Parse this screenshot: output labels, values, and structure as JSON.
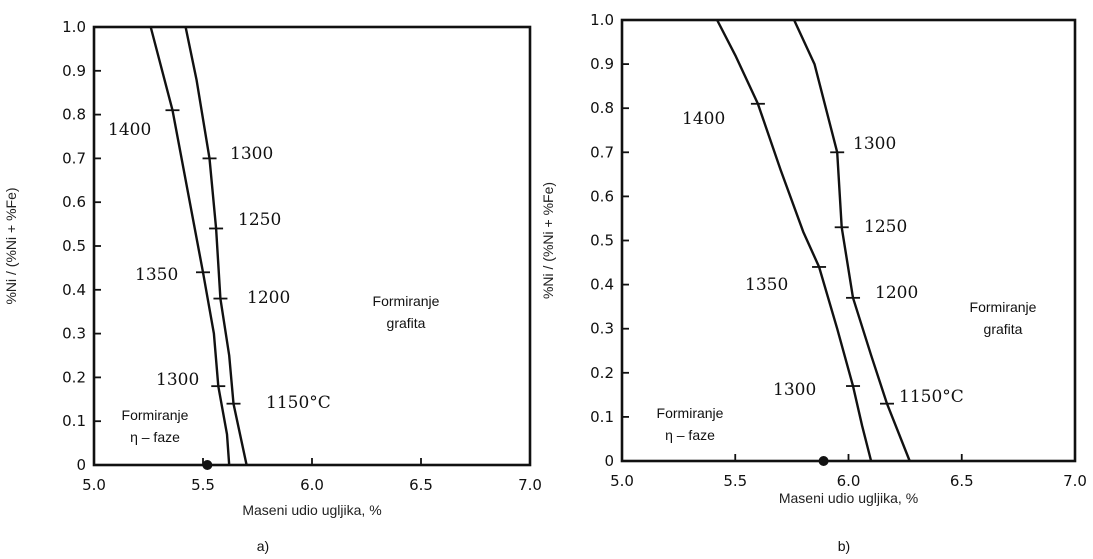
{
  "chart_data": [
    {
      "type": "line",
      "panel_label": "a)",
      "xlabel": "Maseni udio ugljika, %",
      "ylabel": "%Ni / (%Ni + %Fe)",
      "xlim": [
        5.0,
        7.0
      ],
      "ylim": [
        0,
        1.0
      ],
      "x_ticks": [
        "5.0",
        "5.5",
        "6.0",
        "6.5",
        "7.0"
      ],
      "y_ticks": [
        "0",
        "0.1",
        "0.2",
        "0.3",
        "0.4",
        "0.5",
        "0.6",
        "0.7",
        "0.8",
        "0.9",
        "1.0"
      ],
      "grid": false,
      "series": [
        {
          "points": [
            [
              5.26,
              1.0
            ],
            [
              5.36,
              0.81
            ],
            [
              5.5,
              0.44
            ],
            [
              5.55,
              0.3
            ],
            [
              5.57,
              0.18
            ],
            [
              5.61,
              0.07
            ],
            [
              5.62,
              0.0
            ]
          ]
        },
        {
          "points": [
            [
              5.42,
              1.0
            ],
            [
              5.47,
              0.88
            ],
            [
              5.53,
              0.7
            ],
            [
              5.56,
              0.54
            ],
            [
              5.58,
              0.38
            ],
            [
              5.62,
              0.25
            ],
            [
              5.64,
              0.14
            ],
            [
              5.7,
              0.0
            ]
          ]
        }
      ],
      "markers": [
        {
          "label": "1400",
          "x": 5.36,
          "y": 0.81
        },
        {
          "label": "1350",
          "x": 5.5,
          "y": 0.44
        },
        {
          "label": "1300",
          "x": 5.57,
          "y": 0.18
        },
        {
          "label": "1300",
          "x": 5.53,
          "y": 0.7
        },
        {
          "label": "1250",
          "x": 5.56,
          "y": 0.54
        },
        {
          "label": "1200",
          "x": 5.58,
          "y": 0.38
        },
        {
          "label": "1150°C",
          "x": 5.64,
          "y": 0.14
        }
      ],
      "point": {
        "x": 5.52,
        "y": 0.0
      },
      "regions": [
        {
          "lines": [
            "Formiranje",
            "grafita"
          ]
        },
        {
          "lines": [
            "Formiranje",
            "η – faze"
          ]
        }
      ]
    },
    {
      "type": "line",
      "panel_label": "b)",
      "xlabel": "Maseni udio ugljika, %",
      "ylabel": "%Ni / (%Ni + %Fe)",
      "xlim": [
        5.0,
        7.0
      ],
      "ylim": [
        0,
        1.0
      ],
      "x_ticks": [
        "5.0",
        "5.5",
        "6.0",
        "6.5",
        "7.0"
      ],
      "y_ticks": [
        "0",
        "0.1",
        "0.2",
        "0.3",
        "0.4",
        "0.5",
        "0.6",
        "0.7",
        "0.8",
        "0.9",
        "1.0"
      ],
      "grid": false,
      "series": [
        {
          "points": [
            [
              5.42,
              1.0
            ],
            [
              5.5,
              0.92
            ],
            [
              5.6,
              0.81
            ],
            [
              5.7,
              0.66
            ],
            [
              5.8,
              0.52
            ],
            [
              5.87,
              0.44
            ],
            [
              5.95,
              0.3
            ],
            [
              6.02,
              0.17
            ],
            [
              6.06,
              0.08
            ],
            [
              6.1,
              0.0
            ]
          ]
        },
        {
          "points": [
            [
              5.76,
              1.0
            ],
            [
              5.85,
              0.9
            ],
            [
              5.95,
              0.7
            ],
            [
              5.97,
              0.53
            ],
            [
              6.02,
              0.37
            ],
            [
              6.1,
              0.24
            ],
            [
              6.17,
              0.13
            ],
            [
              6.27,
              0.0
            ]
          ]
        }
      ],
      "markers": [
        {
          "label": "1400",
          "x": 5.6,
          "y": 0.81
        },
        {
          "label": "1350",
          "x": 5.87,
          "y": 0.44
        },
        {
          "label": "1300",
          "x": 6.02,
          "y": 0.17
        },
        {
          "label": "1300",
          "x": 5.95,
          "y": 0.7
        },
        {
          "label": "1250",
          "x": 5.97,
          "y": 0.53
        },
        {
          "label": "1200",
          "x": 6.02,
          "y": 0.37
        },
        {
          "label": "1150°C",
          "x": 6.17,
          "y": 0.13
        }
      ],
      "point": {
        "x": 5.89,
        "y": 0.0
      },
      "regions": [
        {
          "lines": [
            "Formiranje",
            "grafita"
          ]
        },
        {
          "lines": [
            "Formiranje",
            "η – faze"
          ]
        }
      ]
    }
  ]
}
